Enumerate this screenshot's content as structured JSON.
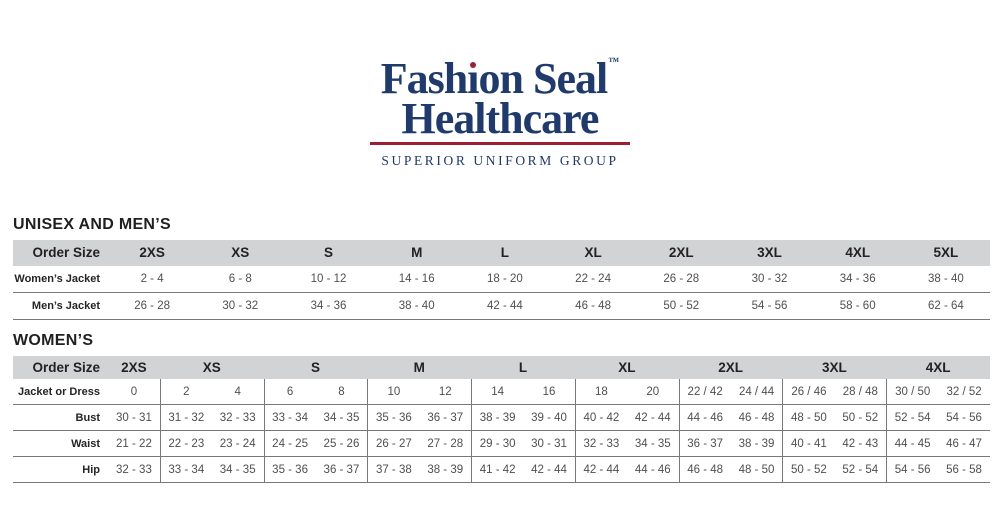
{
  "logo": {
    "brand_pre": "Fash",
    "brand_i_dotless": "ı",
    "brand_post": "on Seal",
    "trademark": "™",
    "line2": "Healthcare",
    "line3": "SUPERIOR UNIFORM GROUP"
  },
  "colors": {
    "navy": "#1f3a6b",
    "red": "#9b2033",
    "header_gray": "#d2d3d5",
    "rule_gray": "#77787b",
    "value_text": "#4e4f52"
  },
  "unisex": {
    "title": "UNISEX AND MEN’S",
    "table": {
      "header": [
        "Order Size",
        "2XS",
        "XS",
        "S",
        "M",
        "L",
        "XL",
        "2XL",
        "3XL",
        "4XL",
        "5XL"
      ],
      "rows": [
        {
          "label": "Women’s Jacket",
          "values": [
            "2 - 4",
            "6 - 8",
            "10 - 12",
            "14 - 16",
            "18 - 20",
            "22 - 24",
            "26 - 28",
            "30 - 32",
            "34 - 36",
            "38 - 40"
          ]
        },
        {
          "label": "Men’s Jacket",
          "values": [
            "26 - 28",
            "30 - 32",
            "34 - 36",
            "38 - 40",
            "42 - 44",
            "46 - 48",
            "50 - 52",
            "54 - 56",
            "58 - 60",
            "62 - 64"
          ]
        }
      ]
    }
  },
  "womens": {
    "title": "WOMEN’S",
    "table": {
      "label_header": "Order Size",
      "groups": [
        {
          "label": "2XS",
          "span": 1
        },
        {
          "label": "XS",
          "span": 2
        },
        {
          "label": "S",
          "span": 2
        },
        {
          "label": "M",
          "span": 2
        },
        {
          "label": "L",
          "span": 2
        },
        {
          "label": "XL",
          "span": 2
        },
        {
          "label": "2XL",
          "span": 2
        },
        {
          "label": "3XL",
          "span": 2
        },
        {
          "label": "4XL",
          "span": 2
        }
      ],
      "rows": [
        {
          "label": "Jacket or Dress",
          "values": [
            [
              "0"
            ],
            [
              "2",
              "4"
            ],
            [
              "6",
              "8"
            ],
            [
              "10",
              "12"
            ],
            [
              "14",
              "16"
            ],
            [
              "18",
              "20"
            ],
            [
              "22 / 42",
              "24 / 44"
            ],
            [
              "26 / 46",
              "28 / 48"
            ],
            [
              "30 / 50",
              "32 / 52"
            ]
          ]
        },
        {
          "label": "Bust",
          "values": [
            [
              "30 - 31"
            ],
            [
              "31 - 32",
              "32 - 33"
            ],
            [
              "33 - 34",
              "34 - 35"
            ],
            [
              "35 - 36",
              "36 - 37"
            ],
            [
              "38 - 39",
              "39 - 40"
            ],
            [
              "40 - 42",
              "42 - 44"
            ],
            [
              "44 - 46",
              "46 - 48"
            ],
            [
              "48 - 50",
              "50 - 52"
            ],
            [
              "52 - 54",
              "54 - 56"
            ]
          ]
        },
        {
          "label": "Waist",
          "values": [
            [
              "21 - 22"
            ],
            [
              "22 - 23",
              "23 - 24"
            ],
            [
              "24 - 25",
              "25 - 26"
            ],
            [
              "26 - 27",
              "27 - 28"
            ],
            [
              "29 - 30",
              "30 - 31"
            ],
            [
              "32 - 33",
              "34 - 35"
            ],
            [
              "36 - 37",
              "38 - 39"
            ],
            [
              "40 - 41",
              "42 - 43"
            ],
            [
              "44 - 45",
              "46 - 47"
            ]
          ]
        },
        {
          "label": "Hip",
          "values": [
            [
              "32 - 33"
            ],
            [
              "33 - 34",
              "34 - 35"
            ],
            [
              "35 - 36",
              "36 - 37"
            ],
            [
              "37 - 38",
              "38 - 39"
            ],
            [
              "41 - 42",
              "42 - 44"
            ],
            [
              "42 - 44",
              "44 - 46"
            ],
            [
              "46 - 48",
              "48 - 50"
            ],
            [
              "50 - 52",
              "52 - 54"
            ],
            [
              "54 - 56",
              "56 - 58"
            ]
          ]
        }
      ]
    }
  }
}
